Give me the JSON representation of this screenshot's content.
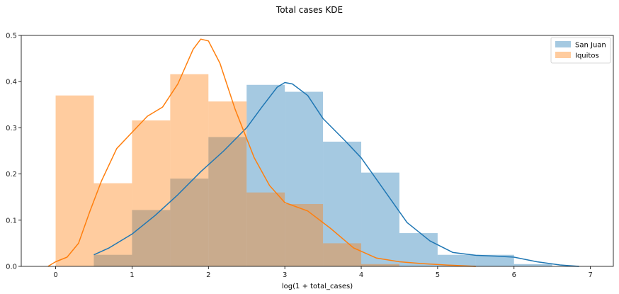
{
  "chart_data": {
    "type": "bar",
    "title": "Total cases KDE",
    "xlabel": "log(1 + total_cases)",
    "ylabel": "",
    "xlim": [
      -0.45,
      7.3
    ],
    "ylim": [
      0,
      0.5
    ],
    "xticks": [
      0,
      1,
      2,
      3,
      4,
      5,
      6,
      7
    ],
    "yticks": [
      0.0,
      0.1,
      0.2,
      0.3,
      0.4,
      0.5
    ],
    "legend_position": "top-right",
    "grid": false,
    "series": [
      {
        "name": "San Juan",
        "color": "#1f77b4",
        "hist": {
          "bins": [
            [
              0.5,
              1.0
            ],
            [
              1.0,
              1.5
            ],
            [
              1.5,
              2.0
            ],
            [
              2.0,
              2.5
            ],
            [
              2.5,
              3.0
            ],
            [
              3.0,
              3.5
            ],
            [
              3.5,
              4.0
            ],
            [
              4.0,
              4.5
            ],
            [
              4.5,
              5.0
            ],
            [
              5.0,
              5.5
            ],
            [
              5.5,
              6.0
            ],
            [
              6.0,
              6.5
            ]
          ],
          "values": [
            0.025,
            0.122,
            0.19,
            0.28,
            0.393,
            0.378,
            0.27,
            0.203,
            0.072,
            0.025,
            0.025,
            0.005
          ]
        },
        "kde": {
          "x": [
            0.5,
            0.7,
            1.0,
            1.3,
            1.6,
            1.9,
            2.2,
            2.5,
            2.7,
            2.9,
            3.0,
            3.1,
            3.3,
            3.5,
            3.8,
            4.0,
            4.3,
            4.6,
            4.9,
            5.2,
            5.5,
            5.8,
            6.0,
            6.3,
            6.6,
            6.85
          ],
          "y": [
            0.025,
            0.04,
            0.07,
            0.11,
            0.155,
            0.205,
            0.25,
            0.3,
            0.345,
            0.388,
            0.398,
            0.395,
            0.37,
            0.32,
            0.27,
            0.235,
            0.165,
            0.095,
            0.055,
            0.03,
            0.024,
            0.022,
            0.02,
            0.01,
            0.003,
            0.0
          ]
        }
      },
      {
        "name": "Iquitos",
        "color": "#ff7f0e",
        "hist": {
          "bins": [
            [
              0.0,
              0.5
            ],
            [
              0.5,
              1.0
            ],
            [
              1.0,
              1.5
            ],
            [
              1.5,
              2.0
            ],
            [
              2.0,
              2.5
            ],
            [
              2.5,
              3.0
            ],
            [
              3.0,
              3.5
            ],
            [
              3.5,
              4.0
            ],
            [
              4.0,
              4.5
            ]
          ],
          "values": [
            0.37,
            0.18,
            0.316,
            0.416,
            0.357,
            0.16,
            0.135,
            0.05,
            0.005
          ]
        },
        "kde": {
          "x": [
            -0.1,
            0.0,
            0.15,
            0.3,
            0.45,
            0.6,
            0.8,
            1.0,
            1.2,
            1.4,
            1.6,
            1.8,
            1.9,
            2.0,
            2.15,
            2.35,
            2.6,
            2.8,
            3.0,
            3.3,
            3.6,
            3.9,
            4.2,
            4.5,
            4.8,
            5.1,
            5.5
          ],
          "y": [
            0.0,
            0.01,
            0.02,
            0.05,
            0.12,
            0.185,
            0.255,
            0.29,
            0.325,
            0.345,
            0.395,
            0.47,
            0.492,
            0.488,
            0.44,
            0.34,
            0.235,
            0.175,
            0.138,
            0.12,
            0.082,
            0.04,
            0.018,
            0.01,
            0.006,
            0.003,
            0.0
          ]
        }
      }
    ]
  }
}
